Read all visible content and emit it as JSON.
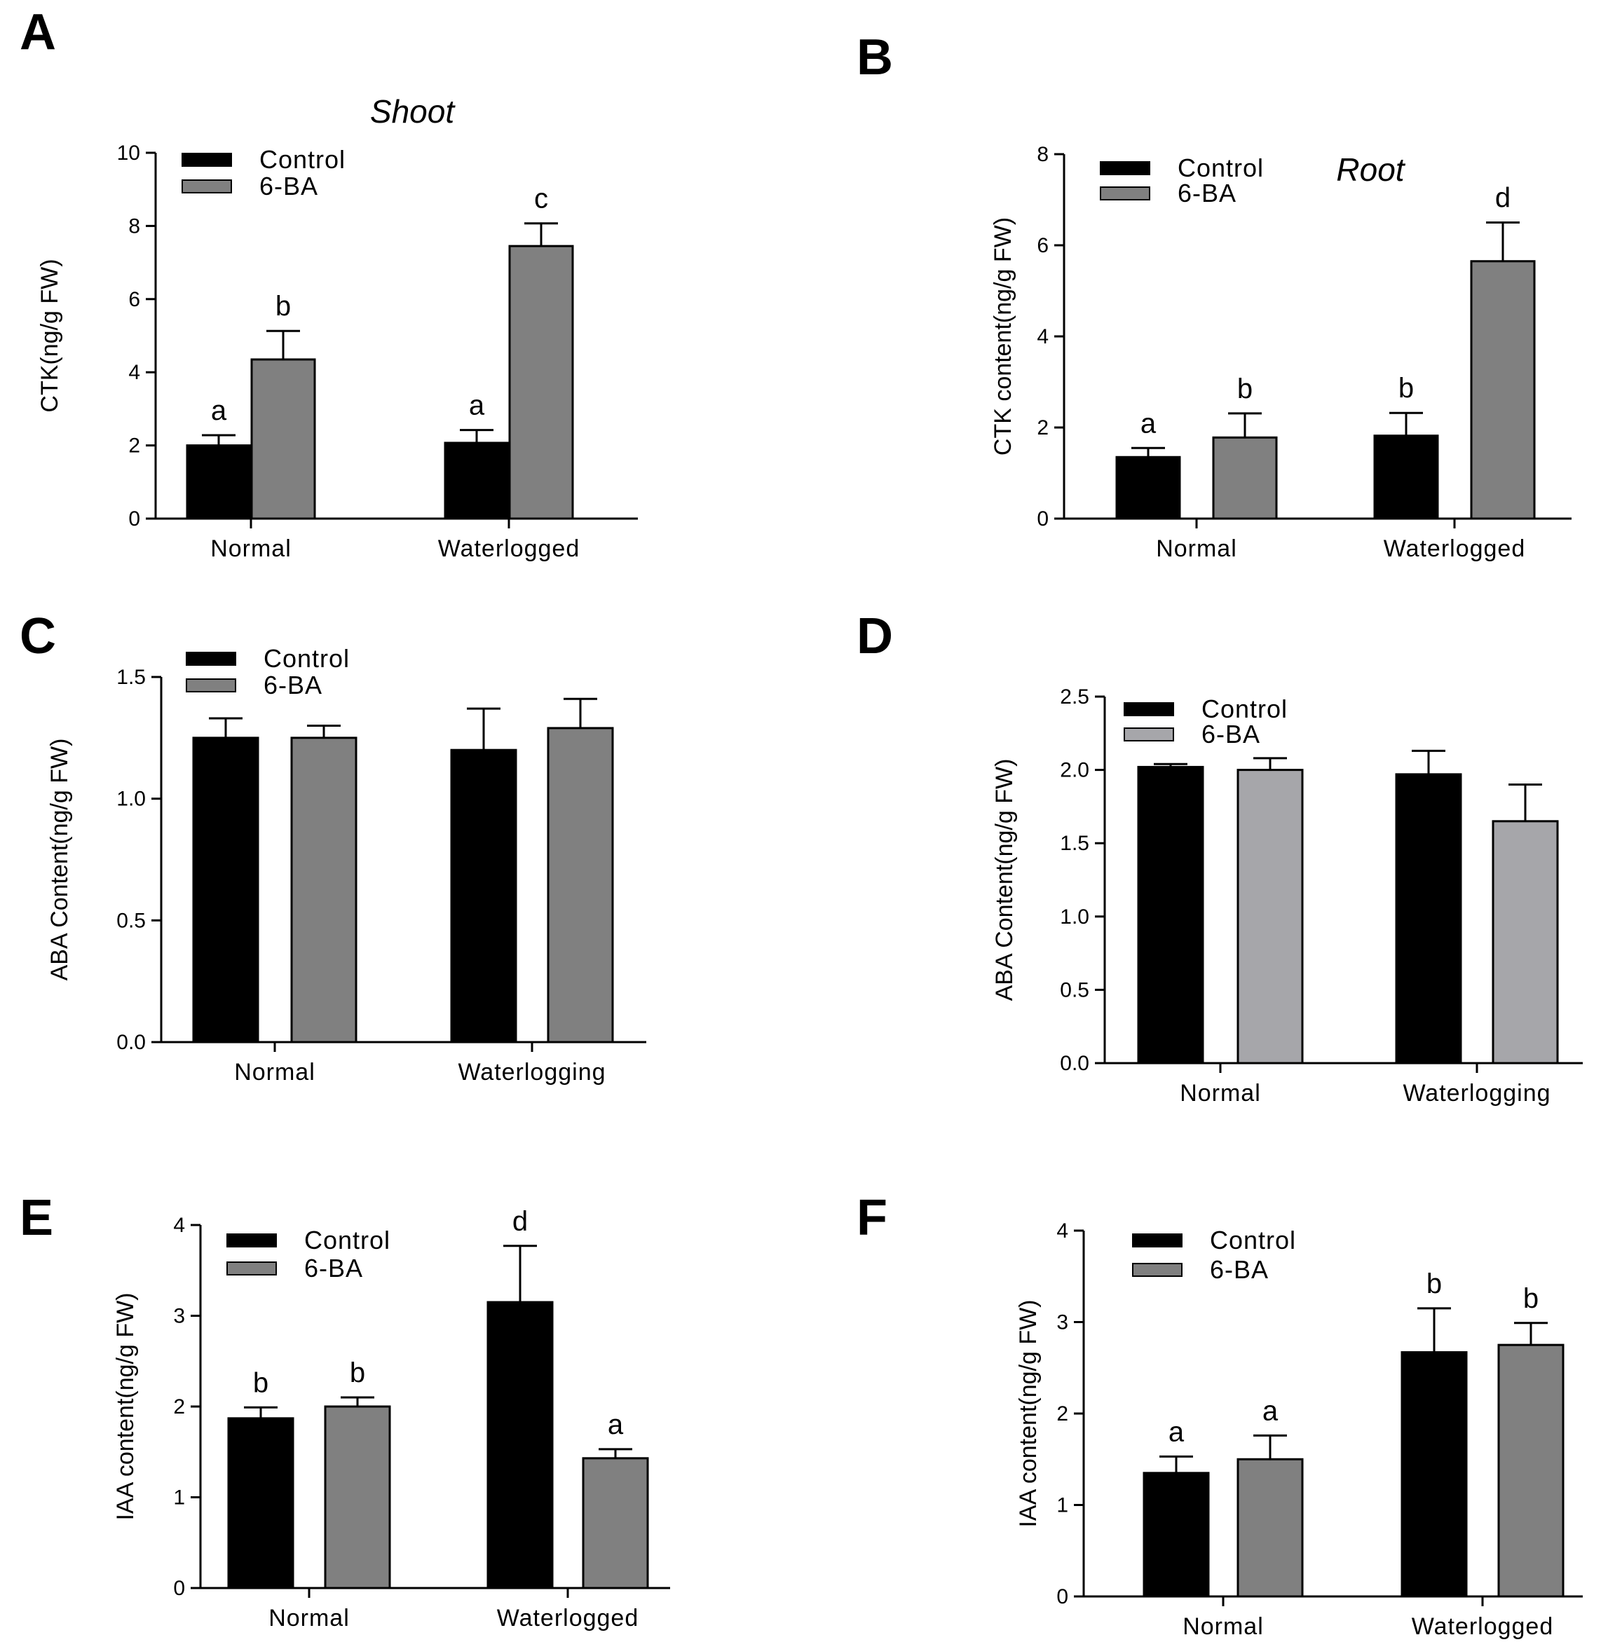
{
  "chart_data": [
    {
      "panel": "A",
      "type": "bar",
      "title": "Shoot",
      "ylabel": "CTK(ng/g FW)",
      "ylim": [
        0,
        10
      ],
      "yticks": [
        "0",
        "2",
        "4",
        "6",
        "8",
        "10"
      ],
      "categories": [
        "Normal",
        "Waterlogged"
      ],
      "series": [
        {
          "name": "Control",
          "color": "#000000",
          "values": [
            2.0,
            2.07
          ],
          "errors": [
            0.28,
            0.35
          ],
          "letters": [
            "a",
            "a"
          ]
        },
        {
          "name": "6-BA",
          "color": "#808080",
          "values": [
            4.35,
            7.45
          ],
          "errors": [
            0.78,
            0.62
          ],
          "letters": [
            "b",
            "c"
          ]
        }
      ]
    },
    {
      "panel": "B",
      "type": "bar",
      "title": "Root",
      "ylabel": "CTK content(ng/g FW)",
      "ylim": [
        0,
        8
      ],
      "yticks": [
        "0",
        "2",
        "4",
        "6",
        "8"
      ],
      "categories": [
        "Normal",
        "Waterlogged"
      ],
      "series": [
        {
          "name": "Control",
          "color": "#000000",
          "values": [
            1.35,
            1.82
          ],
          "errors": [
            0.2,
            0.5
          ],
          "letters": [
            "a",
            "b"
          ]
        },
        {
          "name": "6-BA",
          "color": "#808080",
          "values": [
            1.78,
            5.65
          ],
          "errors": [
            0.53,
            0.85
          ],
          "letters": [
            "b",
            "d"
          ]
        }
      ]
    },
    {
      "panel": "C",
      "type": "bar",
      "title": "",
      "ylabel": "ABA Content(ng/g FW)",
      "ylim": [
        0,
        1.5
      ],
      "yticks": [
        "0.0",
        "0.5",
        "1.0",
        "1.5"
      ],
      "categories": [
        "Normal",
        "Waterlogging"
      ],
      "series": [
        {
          "name": "Control",
          "color": "#000000",
          "values": [
            1.25,
            1.2
          ],
          "errors": [
            0.08,
            0.17
          ],
          "letters": [
            "",
            ""
          ]
        },
        {
          "name": "6-BA",
          "color": "#808080",
          "values": [
            1.25,
            1.29
          ],
          "errors": [
            0.05,
            0.12
          ],
          "letters": [
            "",
            ""
          ]
        }
      ]
    },
    {
      "panel": "D",
      "type": "bar",
      "title": "",
      "ylabel": "ABA Content(ng/g FW)",
      "ylim": [
        0,
        2.5
      ],
      "yticks": [
        "0.0",
        "0.5",
        "1.0",
        "1.5",
        "2.0",
        "2.5"
      ],
      "categories": [
        "Normal",
        "Waterlogging"
      ],
      "series": [
        {
          "name": "Control",
          "color": "#000000",
          "values": [
            2.02,
            1.97
          ],
          "errors": [
            0.02,
            0.16
          ],
          "letters": [
            "",
            ""
          ]
        },
        {
          "name": "6-BA",
          "color": "#a6a6aa",
          "values": [
            2.0,
            1.65
          ],
          "errors": [
            0.08,
            0.25
          ],
          "letters": [
            "",
            ""
          ]
        }
      ]
    },
    {
      "panel": "E",
      "type": "bar",
      "title": "",
      "ylabel": "IAA content(ng/g FW)",
      "ylim": [
        0,
        4
      ],
      "yticks": [
        "0",
        "1",
        "2",
        "3",
        "4"
      ],
      "categories": [
        "Normal",
        "Waterlogged"
      ],
      "series": [
        {
          "name": "Control",
          "color": "#000000",
          "values": [
            1.87,
            3.15
          ],
          "errors": [
            0.12,
            0.62
          ],
          "letters": [
            "b",
            "d"
          ]
        },
        {
          "name": "6-BA",
          "color": "#808080",
          "values": [
            2.0,
            1.43
          ],
          "errors": [
            0.1,
            0.1
          ],
          "letters": [
            "b",
            "a"
          ]
        }
      ]
    },
    {
      "panel": "F",
      "type": "bar",
      "title": "",
      "ylabel": "IAA content(ng/g FW)",
      "ylim": [
        0,
        4
      ],
      "yticks": [
        "0",
        "1",
        "2",
        "3",
        "4"
      ],
      "categories": [
        "Normal",
        "Waterlogged"
      ],
      "series": [
        {
          "name": "Control",
          "color": "#000000",
          "values": [
            1.35,
            2.67
          ],
          "errors": [
            0.18,
            0.48
          ],
          "letters": [
            "a",
            "b"
          ]
        },
        {
          "name": "6-BA",
          "color": "#808080",
          "values": [
            1.5,
            2.75
          ],
          "errors": [
            0.26,
            0.24
          ],
          "letters": [
            "a",
            "b"
          ]
        }
      ]
    }
  ]
}
